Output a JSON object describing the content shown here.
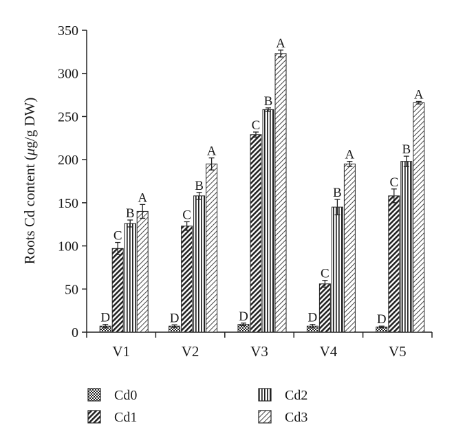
{
  "chart_data": {
    "type": "bar",
    "ylabel_prefix": "Roots Cd content (",
    "ylabel_unit_mu": "μ",
    "ylabel_unit_rest": "g/g DW)",
    "xlabel": "",
    "ylim": [
      0,
      350
    ],
    "yticks": [
      "0",
      "50",
      "100",
      "150",
      "200",
      "250",
      "300",
      "350"
    ],
    "grid": false,
    "legend_position": "bottom",
    "categories": [
      "V1",
      "V2",
      "V3",
      "V4",
      "V5"
    ],
    "series": [
      {
        "name": "Cd0",
        "pattern": "checker",
        "values": [
          7,
          7,
          9,
          7,
          6
        ],
        "errors": [
          2,
          1.5,
          1.5,
          2,
          1
        ],
        "letters": [
          "D",
          "D",
          "D",
          "D",
          "D"
        ]
      },
      {
        "name": "Cd1",
        "pattern": "diag-bold",
        "values": [
          97,
          123,
          229,
          56,
          158
        ],
        "errors": [
          7,
          5,
          3,
          4,
          8
        ],
        "letters": [
          "C",
          "C",
          "C",
          "C",
          "C"
        ]
      },
      {
        "name": "Cd2",
        "pattern": "vertical",
        "values": [
          126,
          158,
          258,
          145,
          198
        ],
        "errors": [
          4,
          4,
          2,
          9,
          6
        ],
        "letters": [
          "B",
          "B",
          "B",
          "B",
          "B"
        ]
      },
      {
        "name": "Cd3",
        "pattern": "diag-light",
        "values": [
          140,
          195,
          323,
          195,
          266
        ],
        "errors": [
          8,
          7,
          4,
          3,
          1.5
        ],
        "letters": [
          "A",
          "A",
          "A",
          "A",
          "A"
        ]
      }
    ]
  }
}
